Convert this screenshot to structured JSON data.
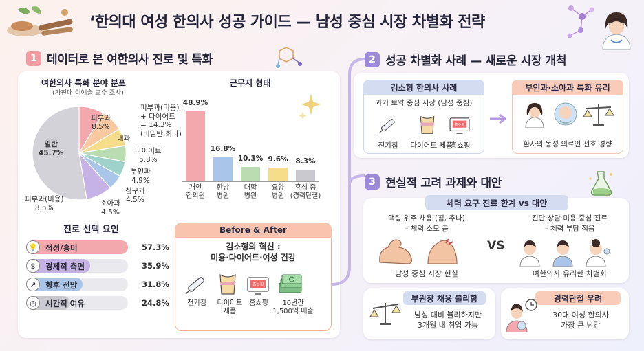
{
  "title": "‘한의대 여성 한의사 성공 가이드 — 남성 중심 시장 차별화 전략",
  "colors": {
    "pink": "#f3a8ae",
    "blue": "#a9c6ea",
    "green": "#b9ddb1",
    "yellow": "#f6dd8a",
    "gray": "#c9c9cf",
    "purple": "#c6b3e6",
    "section1": "#f49ca4",
    "section2": "#9c8ad9"
  },
  "section1": {
    "num": "1",
    "title": "데이터로 본 여한의사 진로 및 특화",
    "pie": {
      "title": "여한의사 특화 분야 분포",
      "subtitle": "(가천대 이예슬 교수 조사)",
      "labels": {
        "skin": "피부과",
        "skin_val": "8.5%",
        "beauty_note1": "피부과(미용)",
        "beauty_note2": "+ 다이어트",
        "beauty_note3": "= 14.3%",
        "beauty_note4": "(비일반 최다)",
        "internal": "내과",
        "diet": "다이어트",
        "diet_val": "5.8%",
        "women": "부인과",
        "women_val": "4.9%",
        "acu": "침구과",
        "acu_val": "4.5%",
        "kids": "소아과",
        "kids_val": "4.5%",
        "beauty": "피부과(미용)",
        "beauty_val": "8.5%",
        "general": "일반",
        "general_val": "45.7%"
      }
    },
    "chart_data": {
      "type": "bar",
      "title": "근무지 형태",
      "categories": [
        "개인 한의원",
        "한방 병원",
        "대학 병원",
        "요양 병원",
        "휴식 중 (경력단절)"
      ],
      "category_lines": [
        [
          "개인",
          "한의원"
        ],
        [
          "한방",
          "병원"
        ],
        [
          "대학",
          "병원"
        ],
        [
          "요양",
          "병원"
        ],
        [
          "휴식 중",
          "(경력단절)"
        ]
      ],
      "values": [
        48.9,
        16.8,
        10.3,
        9.6,
        8.3
      ],
      "value_labels": [
        "48.9%",
        "16.8%",
        "10.3%",
        "9.6%",
        "8.3%"
      ],
      "colors": [
        "#f3a8ae",
        "#a9c6ea",
        "#b9ddb1",
        "#f6dd8a",
        "#c9c9cf"
      ],
      "ylim": [
        0,
        50
      ]
    },
    "factors": {
      "title": "진로 선택 요인",
      "items": [
        {
          "label": "적성/흥미",
          "value": 57.3,
          "display": "57.3%",
          "color": "#f3a8ae",
          "icon": "lightbulb-icon",
          "glyph": "💡"
        },
        {
          "label": "경제적 측면",
          "value": 35.9,
          "display": "35.9%",
          "color": "#c6b3e6",
          "icon": "money-icon",
          "glyph": "$"
        },
        {
          "label": "향후 전망",
          "value": 31.8,
          "display": "31.8%",
          "color": "#a9c6ea",
          "icon": "growth-chart-icon",
          "glyph": "↗"
        },
        {
          "label": "시간적 여유",
          "value": 24.8,
          "display": "24.8%",
          "color": "#c9c9cf",
          "icon": "clock-icon",
          "glyph": "◷"
        }
      ]
    },
    "before_after": {
      "header": "Before & After",
      "subtitle1": "김소형의 혁신 :",
      "subtitle2": "미용·다이어트·여성 건강",
      "items": [
        {
          "l1": "전기침",
          "l2": ""
        },
        {
          "l1": "다이어트",
          "l2": "제품"
        },
        {
          "l1": "홈쇼핑",
          "l2": ""
        },
        {
          "l1": "10년간",
          "l2": "1,500억 매출"
        }
      ],
      "tv_text": "홈쇼핑"
    }
  },
  "section2": {
    "num": "2",
    "title": "성공 차별화 사례 — 새로운 시장 개척",
    "case": {
      "header": "김소형 한의사 사례",
      "desc": "과거 보약 중심 시장 (남성 중심)",
      "items": [
        "전기침",
        "다이어트 제품",
        "흥쇼핑"
      ],
      "tv_text": "홈쇼핑"
    },
    "advantage": {
      "header": "부인과·소아과 특화 유리",
      "desc": "환자의 동성 의료인 선호 경향"
    }
  },
  "section3": {
    "num": "3",
    "title": "현실적 고려 과제와 대안",
    "compare": {
      "header": "체력 요구 진료 한계 vs 대안",
      "left_t1": "액팅 위주 채용 (침, 추나)",
      "left_t2": "– 체력 소모 큼",
      "left_foot": "남성 중심 시장 현실",
      "vs": "VS",
      "right_t1": "진단·상담·미용 중심 진료",
      "right_t2": "– 체력 부담 적음",
      "right_foot": "여한의사 유리한 차별화"
    },
    "hire": {
      "header": "부원장 채용 불리함",
      "t1": "남성 대비 불리하지만",
      "t2": "3개월 내 취업 가능"
    },
    "career": {
      "header": "경력단절 우려",
      "t1": "30대 여성 한의사",
      "t2": "가장 큰 난감"
    }
  }
}
